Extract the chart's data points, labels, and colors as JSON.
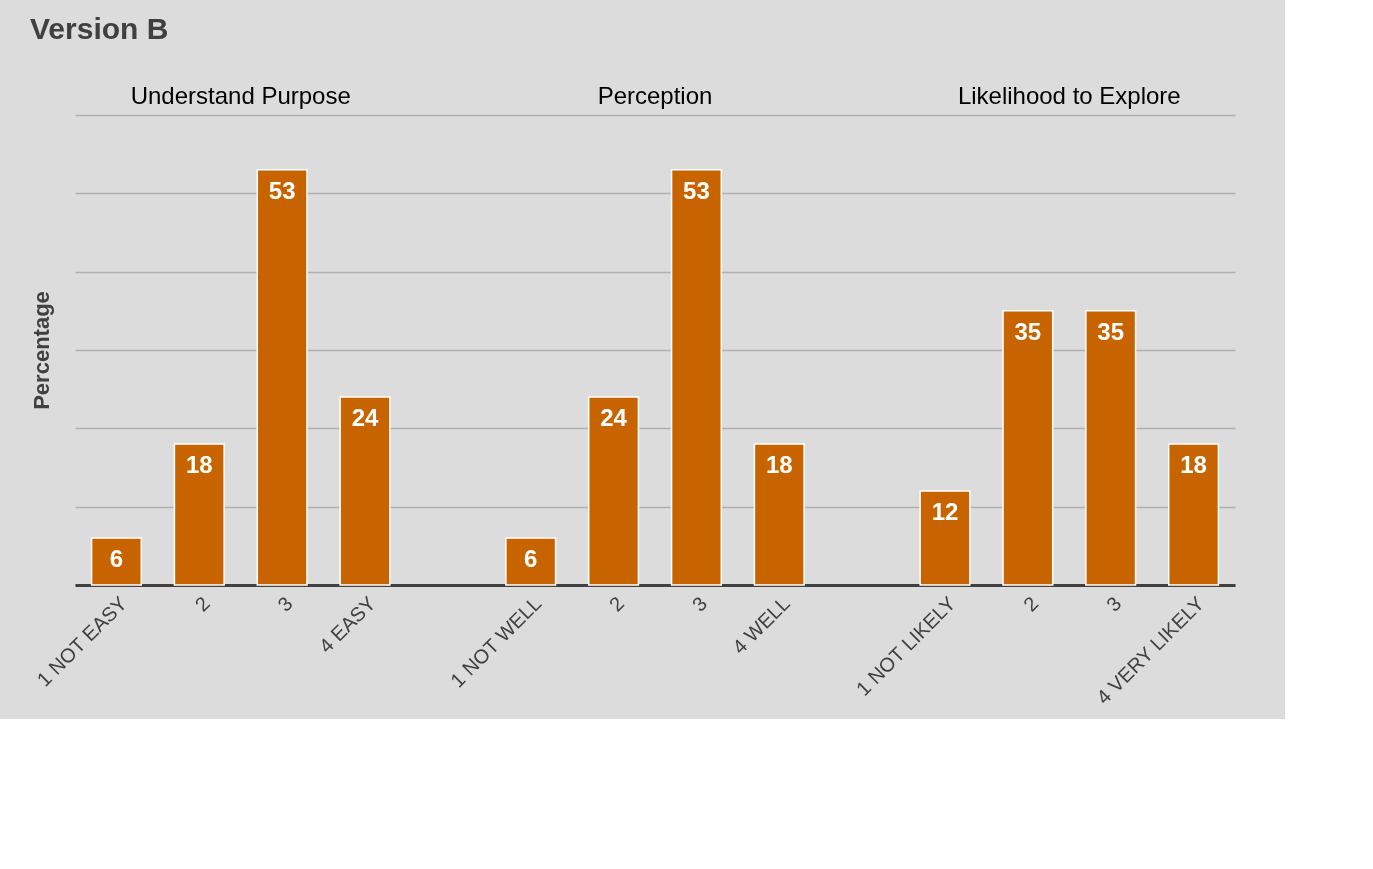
{
  "chart_data": {
    "type": "bar",
    "title": "Version B",
    "ylabel": "Percentage",
    "categories": [
      "1 NOT EASY",
      "2",
      "3",
      "4 EASY",
      null,
      "1 NOT WELL",
      "2",
      "3",
      "4 WELL",
      null,
      "1 NOT LIKELY",
      "2",
      "3",
      "4 VERY LIKELY"
    ],
    "series": [
      {
        "color": "#c86400",
        "values": [
          6,
          18,
          53,
          24,
          null,
          6,
          24,
          53,
          18,
          null,
          12,
          35,
          35,
          18
        ]
      }
    ],
    "ylim": [
      0,
      60
    ],
    "yticks": [
      {
        "value": 0,
        "label": null
      },
      {
        "value": 10,
        "label": null
      },
      {
        "value": 20,
        "label": null
      },
      {
        "value": 30,
        "label": null
      },
      {
        "value": 40,
        "label": null
      },
      {
        "value": 50,
        "label": null
      },
      {
        "value": 60,
        "label": null
      }
    ],
    "grid": "y",
    "data_labels": true,
    "annotations": [
      "Understand Purpose",
      "Perception",
      "Likelihood to Explore"
    ]
  }
}
